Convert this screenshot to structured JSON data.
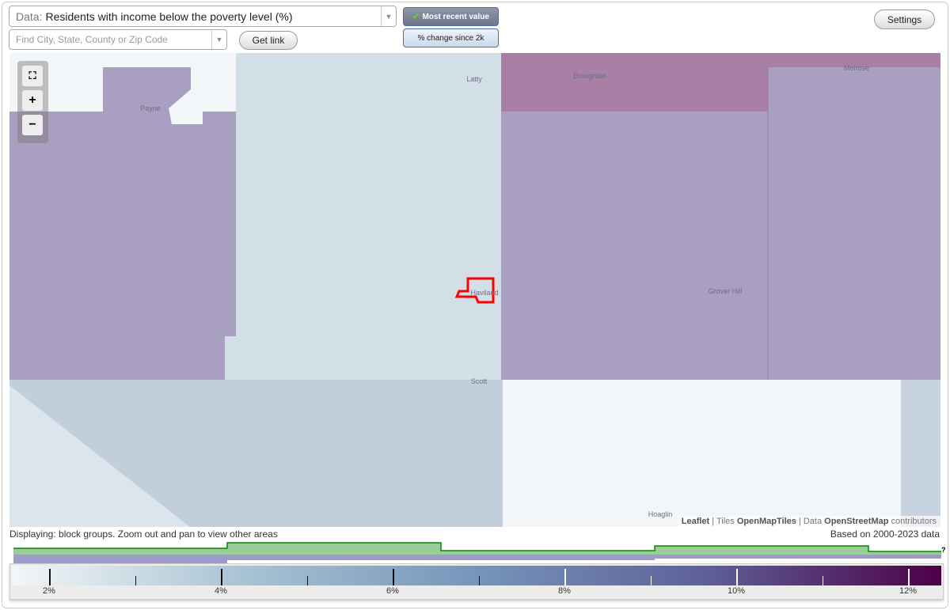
{
  "data_select": {
    "prefix": "Data:",
    "value": "Residents with income below the poverty level (%)"
  },
  "search": {
    "placeholder": "Find City, State, County or Zip Code"
  },
  "get_link": "Get link",
  "toggles": {
    "most_recent": "Most recent value",
    "change": "% change since 2k"
  },
  "settings": "Settings",
  "map": {
    "labels": [
      "Latty",
      "Broughton",
      "Melrose",
      "Payne",
      "Haviland",
      "Grover Hill",
      "Scott",
      "Hoaglin"
    ],
    "colors": {
      "low": "#f3f6f8",
      "light_blue": "#d3dfe7",
      "blue_gray": "#c3cedd",
      "purple": "#a99fc0",
      "magenta": "#a97fa6",
      "highlight": "#ff0000"
    },
    "attribution": {
      "leaflet": "Leaflet",
      "tiles_prefix": "Tiles",
      "tiles": "OpenMapTiles",
      "data_prefix": "Data",
      "osm": "OpenStreetMap",
      "contributors": "contributors"
    }
  },
  "status": {
    "displaying": "Displaying: block groups. Zoom out and pan to view other areas",
    "based_on": "Based on 2000-2023 data",
    "help": "?"
  },
  "legend": {
    "min": 2,
    "max": 12.2,
    "ticks": [
      "2%",
      "4%",
      "6%",
      "8%",
      "10%",
      "12%"
    ],
    "tick_values": [
      2,
      4,
      6,
      8,
      10,
      12
    ],
    "minor_values": [
      3,
      5,
      7,
      9,
      11
    ],
    "colors": [
      "#f3f6f8",
      "#a8c3d3",
      "#7595ba",
      "#5e5f98",
      "#4d0046"
    ]
  }
}
